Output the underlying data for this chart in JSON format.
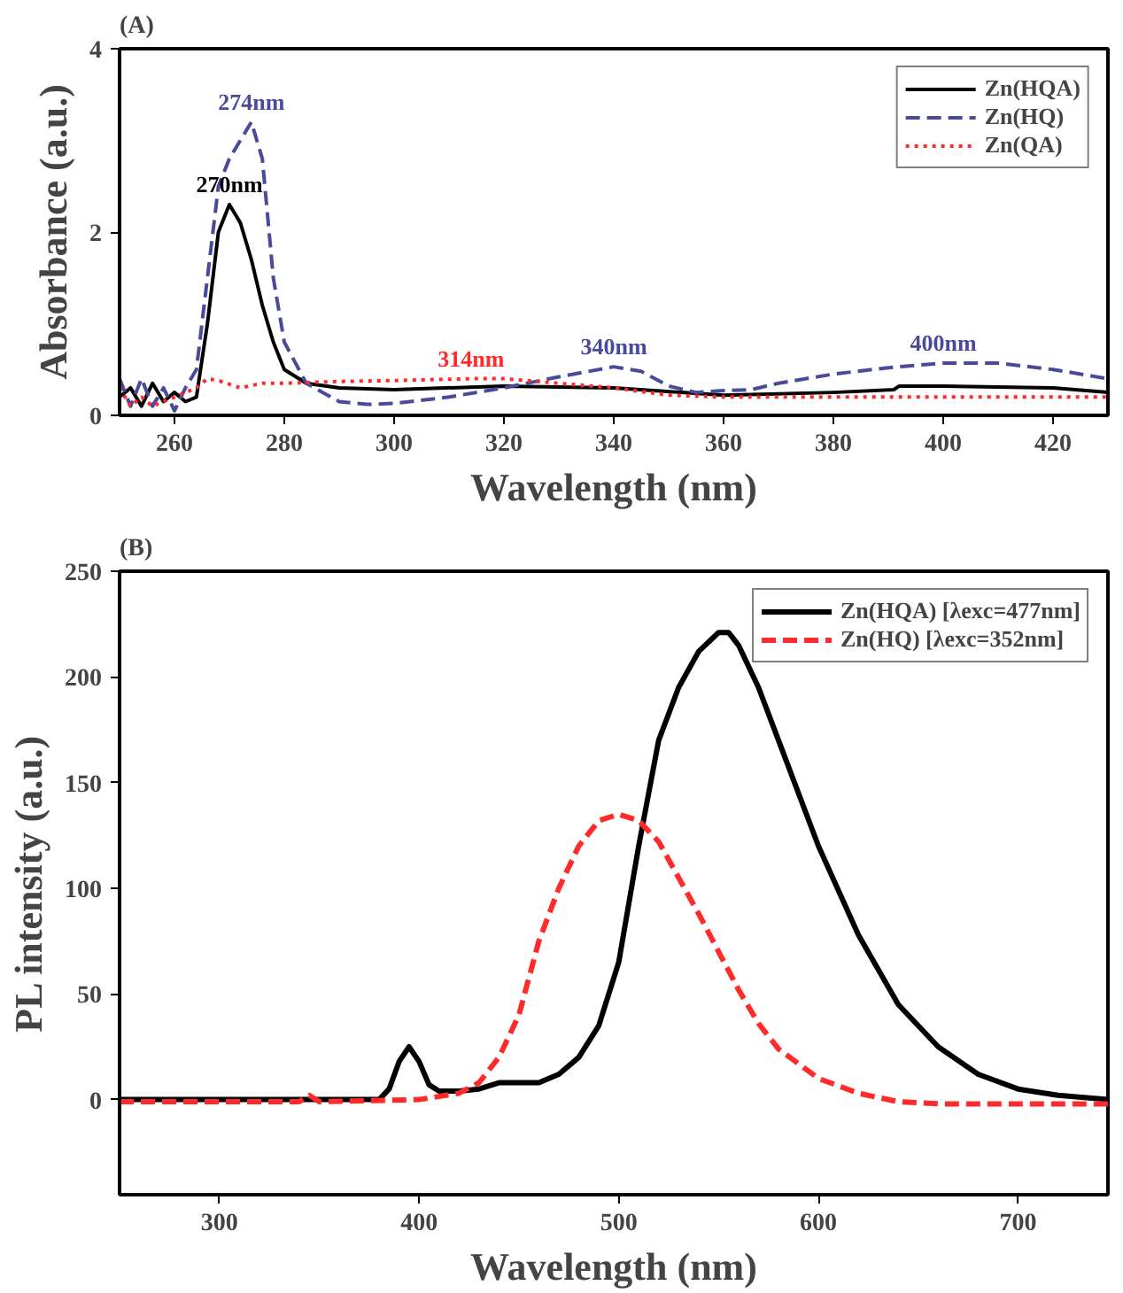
{
  "chart_data": [
    {
      "type": "line",
      "title": "(A)",
      "xlabel": "Wavelength (nm)",
      "ylabel": "Absorbance (a.u.)",
      "xlim": [
        250,
        430
      ],
      "xticks": [
        260,
        280,
        300,
        320,
        340,
        360,
        380,
        400,
        420
      ],
      "ylim": [
        0,
        4
      ],
      "yticks": [
        0,
        2,
        4
      ],
      "grid": false,
      "legend": "top right",
      "marker": "none",
      "series": [
        {
          "name": "Zn(HQA)",
          "color": "#000000",
          "line_style": "solid",
          "x": [
            250,
            252,
            254,
            256,
            258,
            260,
            262,
            264,
            266,
            268,
            270,
            272,
            274,
            276,
            278,
            280,
            284,
            290,
            300,
            320,
            340,
            360,
            380,
            391,
            392,
            400,
            420,
            430
          ],
          "values": [
            0.2,
            0.3,
            0.1,
            0.35,
            0.15,
            0.25,
            0.15,
            0.2,
            1.0,
            2.0,
            2.3,
            2.1,
            1.7,
            1.2,
            0.8,
            0.5,
            0.35,
            0.3,
            0.28,
            0.32,
            0.3,
            0.22,
            0.25,
            0.28,
            0.32,
            0.32,
            0.3,
            0.25
          ]
        },
        {
          "name": "Zn(HQ)",
          "color": "#4a4a9a",
          "line_style": "dashed",
          "x": [
            250,
            252,
            254,
            256,
            258,
            260,
            262,
            264,
            266,
            268,
            270,
            272,
            274,
            276,
            278,
            280,
            284,
            290,
            295,
            300,
            310,
            320,
            330,
            340,
            345,
            350,
            355,
            360,
            365,
            370,
            380,
            390,
            400,
            410,
            420,
            430
          ],
          "values": [
            0.4,
            0.1,
            0.4,
            0.1,
            0.3,
            0.05,
            0.3,
            0.5,
            1.5,
            2.5,
            2.8,
            3.0,
            3.2,
            2.8,
            1.5,
            0.8,
            0.35,
            0.15,
            0.12,
            0.13,
            0.2,
            0.3,
            0.42,
            0.53,
            0.48,
            0.32,
            0.25,
            0.27,
            0.28,
            0.35,
            0.45,
            0.52,
            0.57,
            0.57,
            0.5,
            0.4
          ]
        },
        {
          "name": "Zn(QA)",
          "color": "#ff2a2a",
          "line_style": "dotted",
          "x": [
            250,
            252,
            254,
            256,
            258,
            260,
            262,
            264,
            266,
            268,
            272,
            276,
            280,
            290,
            300,
            314,
            320,
            330,
            340,
            350,
            360,
            380,
            400,
            430
          ],
          "values": [
            0.3,
            0.1,
            0.2,
            0.1,
            0.15,
            0.2,
            0.25,
            0.3,
            0.4,
            0.38,
            0.3,
            0.35,
            0.35,
            0.37,
            0.38,
            0.4,
            0.4,
            0.35,
            0.3,
            0.22,
            0.2,
            0.2,
            0.2,
            0.2
          ]
        }
      ],
      "annotations": [
        {
          "text": "270nm",
          "x": 270,
          "y": 2.3
        },
        {
          "text": "274nm",
          "x": 274,
          "y": 3.2
        },
        {
          "text": "314nm",
          "x": 314,
          "y": 0.4
        },
        {
          "text": "340nm",
          "x": 340,
          "y": 0.53
        },
        {
          "text": "400nm",
          "x": 400,
          "y": 0.57
        }
      ]
    },
    {
      "type": "line",
      "title": "(B)",
      "xlabel": "Wavelength (nm)",
      "ylabel": "PL intensity (a.u.)",
      "xlim": [
        250,
        745
      ],
      "xticks": [
        300,
        400,
        500,
        600,
        700
      ],
      "ylim": [
        -45,
        250
      ],
      "yticks": [
        0,
        50,
        100,
        150,
        200,
        250
      ],
      "grid": false,
      "legend": "top right",
      "marker": "none",
      "series": [
        {
          "name": "Zn(HQA) [λexc=477nm]",
          "color": "#000000",
          "line_style": "solid",
          "x": [
            250,
            380,
            385,
            390,
            395,
            400,
            405,
            410,
            420,
            430,
            440,
            450,
            460,
            470,
            480,
            490,
            500,
            510,
            520,
            530,
            540,
            550,
            555,
            560,
            570,
            580,
            600,
            620,
            640,
            660,
            680,
            700,
            720,
            745
          ],
          "values": [
            0,
            0,
            5,
            18,
            25,
            18,
            7,
            4,
            4,
            5,
            8,
            8,
            8,
            12,
            20,
            35,
            65,
            120,
            170,
            195,
            212,
            221,
            221,
            215,
            195,
            170,
            120,
            78,
            45,
            25,
            12,
            5,
            2,
            0
          ]
        },
        {
          "name": "Zn(HQ) [λexc=352nm]",
          "color": "#ff2a2a",
          "line_style": "dashed",
          "x": [
            250,
            340,
            345,
            350,
            400,
            420,
            430,
            440,
            450,
            460,
            470,
            480,
            490,
            500,
            510,
            520,
            530,
            540,
            550,
            560,
            570,
            580,
            600,
            620,
            640,
            660,
            700,
            745
          ],
          "values": [
            -1,
            -1,
            2,
            -1,
            0,
            3,
            8,
            20,
            40,
            75,
            100,
            120,
            132,
            135,
            132,
            122,
            105,
            88,
            70,
            52,
            36,
            24,
            10,
            3,
            -1,
            -2,
            -2,
            -2
          ]
        }
      ]
    }
  ]
}
